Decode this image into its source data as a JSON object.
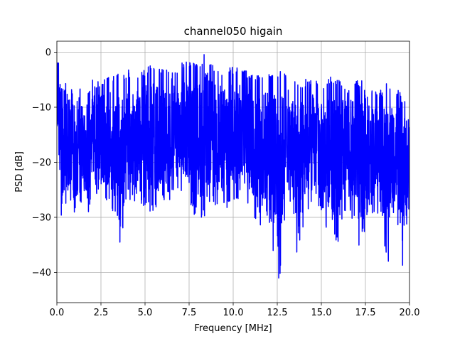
{
  "chart_data": {
    "type": "line",
    "title": "channel050 higain",
    "xlabel": "Frequency [MHz]",
    "ylabel": "PSD [dB]",
    "xlim": [
      0,
      20
    ],
    "ylim": [
      -45.5,
      2
    ],
    "x_ticks": [
      0,
      2.5,
      5,
      7.5,
      10,
      12.5,
      15,
      17.5,
      20
    ],
    "x_tick_labels": [
      "0.0",
      "2.5",
      "5.0",
      "7.5",
      "10.0",
      "12.5",
      "15.0",
      "17.5",
      "20.0"
    ],
    "y_ticks": [
      0,
      -10,
      -20,
      -30,
      -40
    ],
    "y_tick_labels": [
      "0",
      "−10",
      "−20",
      "−30",
      "−40"
    ],
    "grid": true,
    "series": [
      {
        "color": "#0000ff",
        "x": [
          0.0,
          0.1,
          0.2,
          0.3,
          0.5,
          0.7,
          0.9,
          1.0,
          1.2,
          1.5,
          1.8,
          2.0,
          2.5,
          3.0,
          3.5,
          3.6,
          4.0,
          4.5,
          5.0,
          5.5,
          6.0,
          6.5,
          7.0,
          7.5,
          8.0,
          8.4,
          8.5,
          9.0,
          9.5,
          10.0,
          10.5,
          11.0,
          11.3,
          11.5,
          12.0,
          12.2,
          12.5,
          12.6,
          13.0,
          13.5,
          13.7,
          14.0,
          14.5,
          15.0,
          15.5,
          16.0,
          16.2,
          16.5,
          17.0,
          17.3,
          17.5,
          18.0,
          18.5,
          18.7,
          19.0,
          19.5,
          19.6,
          20.0
        ],
        "upper": [
          -1.0,
          -1.5,
          -6,
          -7,
          -5,
          -8,
          -6,
          -9,
          -7,
          -6,
          -7,
          -5,
          -5,
          -4,
          -3.5,
          -5,
          -3,
          -4,
          -3,
          -2,
          -3,
          -3.5,
          -2,
          -1.5,
          -2,
          0,
          0,
          -2.5,
          -3,
          -2.5,
          -3,
          -3.5,
          -4,
          -4,
          -3,
          -3.5,
          -4,
          -3.5,
          -3.5,
          -5,
          -5,
          -5,
          -4.5,
          -6,
          -4.5,
          -4.5,
          -5,
          -6,
          -5,
          -5,
          -7,
          -6.5,
          -7,
          -5.5,
          -6.5,
          -7,
          -8.5,
          -9
        ],
        "lower": [
          -16,
          -18,
          -33,
          -30,
          -29,
          -28,
          -26,
          -35,
          -25,
          -31,
          -29,
          -25,
          -27,
          -28,
          -31,
          -36.5,
          -26,
          -29,
          -28,
          -30,
          -27,
          -27,
          -25,
          -29,
          -30,
          -30,
          -28,
          -28,
          -29,
          -28,
          -26,
          -29,
          -31,
          -33,
          -30,
          -37,
          -33,
          -43,
          -27,
          -31,
          -42,
          -32,
          -28,
          -33,
          -31,
          -36,
          -30,
          -29,
          -32,
          -39,
          -30,
          -29,
          -31,
          -43,
          -29,
          -33,
          -39,
          -28
        ]
      }
    ]
  }
}
